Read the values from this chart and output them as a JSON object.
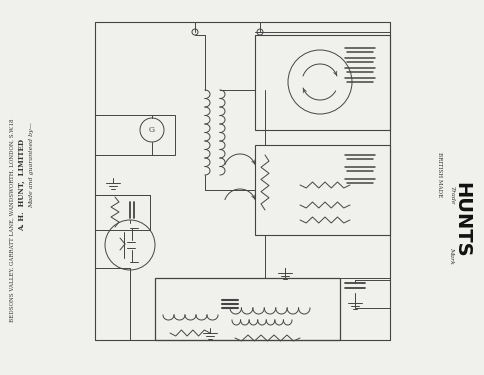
{
  "bg_color": "#f0f0ec",
  "line_color": "#444444",
  "text_color": "#333333",
  "title_left_lines": [
    "Made and guaranteed by—",
    "A. H.  HUNT,  LIMITED",
    "BEDSONS VALLEY, GARRATT LANE, WANDSWORTH, LONDON, S.W.18"
  ],
  "brand_text": "HUNTS",
  "brand_prefix": "Trade",
  "brand_suffix": "Mark",
  "british_made": "BRITISH MADE"
}
